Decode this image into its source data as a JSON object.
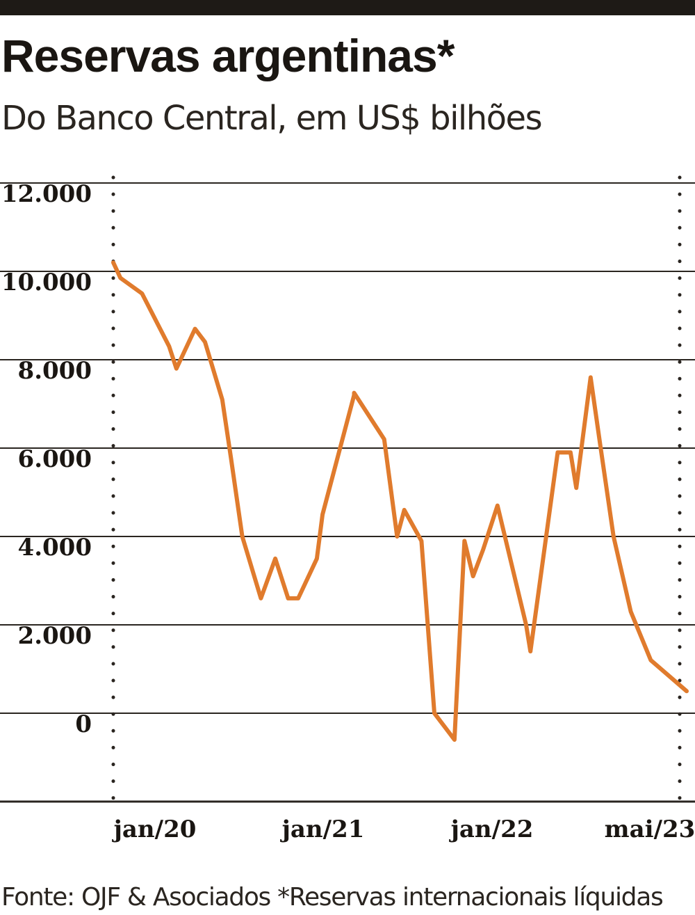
{
  "header": {
    "title": "Reservas argentinas*",
    "subtitle": "Do Banco Central, em US$ bilhões"
  },
  "footer": {
    "source": "Fonte: OJF & Asociados *Reservas internacionais líquidas"
  },
  "colors": {
    "line": "#e07b2d",
    "grid": "#2a2520",
    "text": "#1a1612"
  },
  "chart_data": {
    "type": "line",
    "title": "Reservas argentinas*",
    "subtitle": "Do Banco Central, em US$ bilhões",
    "xlabel": "",
    "ylabel": "",
    "grid": true,
    "y_ticks": [
      "12.000",
      "10.000",
      "8.000",
      "6.000",
      "4.000",
      "2.000",
      "0"
    ],
    "y_tick_values": [
      12000,
      10000,
      8000,
      6000,
      4000,
      2000,
      0
    ],
    "ylim": [
      -2000,
      12500
    ],
    "x_tick_labels": [
      "jan/20",
      "jan/21",
      "jan/22",
      "mai/23"
    ],
    "x_tick_values": [
      0,
      12,
      24,
      40
    ],
    "xlim": [
      0,
      40
    ],
    "series": [
      {
        "x": [
          0,
          0.5,
          2,
          3.9,
          4.4,
          5.7,
          6.4,
          7.6,
          8.2,
          9,
          10.3,
          11.3,
          12.2,
          12.9,
          14.2,
          14.6,
          16.8,
          16.8,
          18.1,
          18.9,
          19.8,
          20.3,
          21.5,
          22.4,
          23.8,
          24.5,
          25.1,
          25.8,
          26.8,
          28.8,
          29.1,
          31,
          31.9,
          32.3,
          33.3,
          34,
          34.9,
          36.1,
          37.5,
          40
        ],
        "values": [
          10200,
          9850,
          9500,
          8300,
          7800,
          8700,
          8400,
          7100,
          5800,
          4000,
          2600,
          3500,
          2600,
          2600,
          3500,
          4500,
          7200,
          7250,
          6600,
          6200,
          4000,
          4600,
          3900,
          0,
          -600,
          3900,
          3100,
          3700,
          4700,
          2000,
          1400,
          5900,
          5900,
          5100,
          7600,
          6000,
          4000,
          2300,
          1200,
          500
        ]
      }
    ]
  }
}
